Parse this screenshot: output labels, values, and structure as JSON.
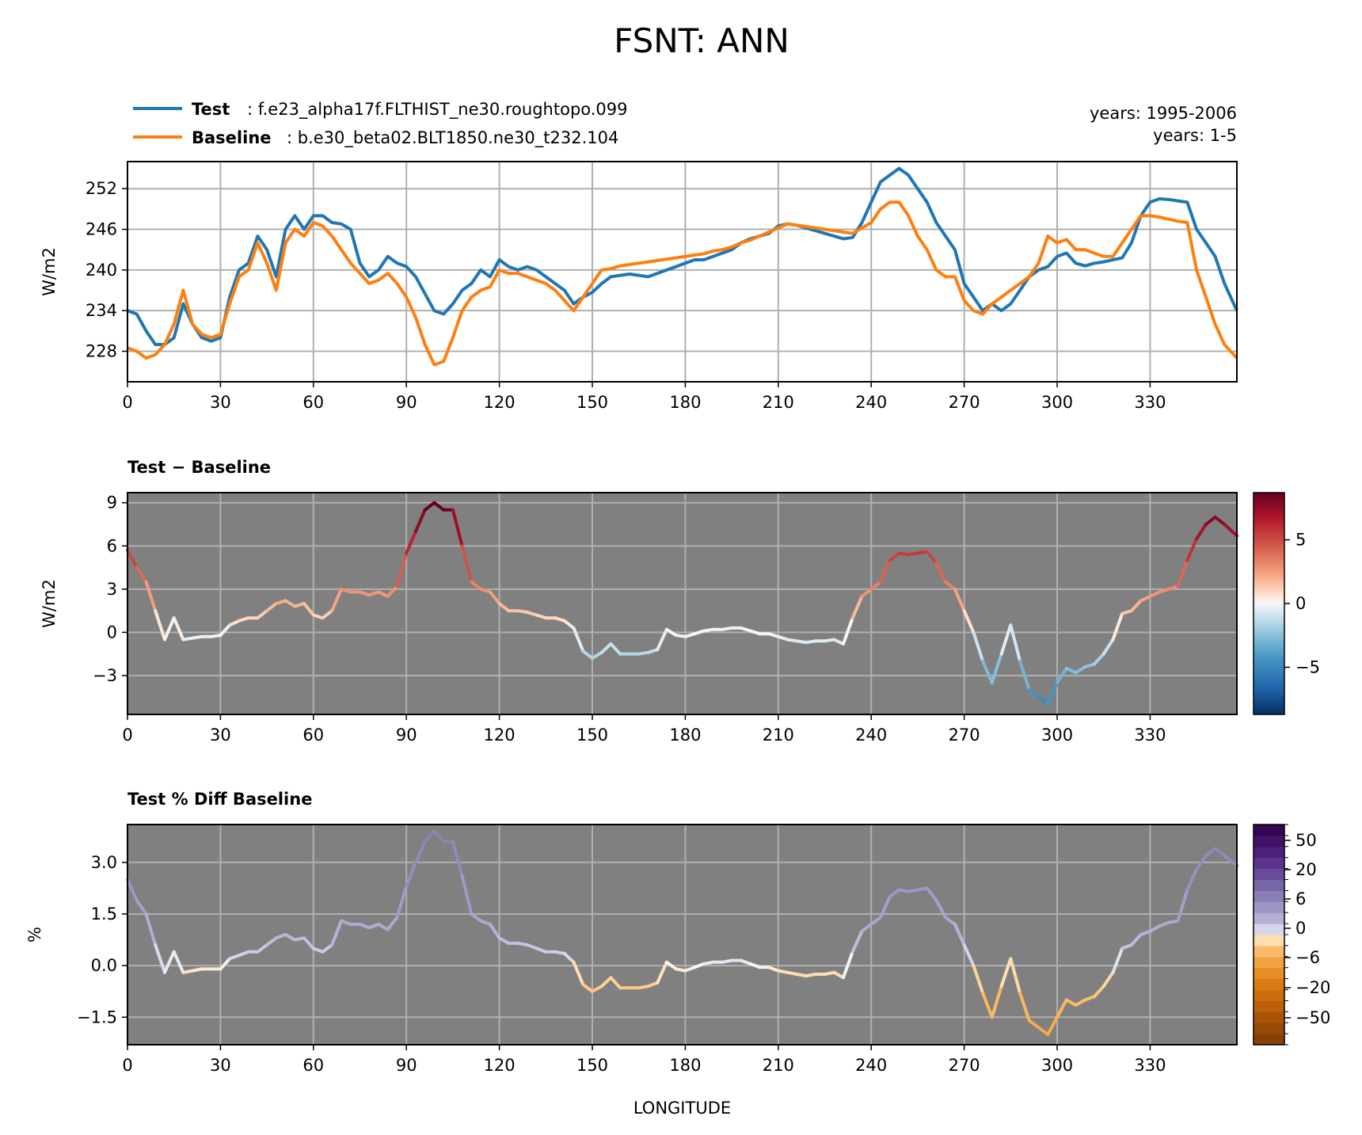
{
  "title": "FSNT: ANN",
  "legend": {
    "test_label": "Test",
    "test_desc": ": f.e23_alpha17f.FLTHIST_ne30.roughtopo.099",
    "base_label": "Baseline",
    "base_desc": ": b.e30_beta02.BLT1850.ne30_t232.104",
    "test_years": "years: 1995-2006",
    "base_years": "years: 1-5"
  },
  "colors": {
    "test": "#1f77b4",
    "baseline": "#ff7f0e",
    "panel_bg": "#808080",
    "grid": "#b0b0b0"
  },
  "chart_data": [
    {
      "type": "line",
      "title": "",
      "xlabel": "",
      "ylabel": "W/m2",
      "xlim": [
        0,
        358
      ],
      "ylim": [
        223.5,
        256
      ],
      "xticks": [
        "0",
        "30",
        "60",
        "90",
        "120",
        "150",
        "180",
        "210",
        "240",
        "270",
        "300",
        "330"
      ],
      "yticks": [
        "228",
        "234",
        "240",
        "246",
        "252"
      ],
      "series": [
        {
          "name": "Test",
          "x": [
            0,
            3,
            6,
            9,
            12,
            15,
            18,
            21,
            24,
            27,
            30,
            33,
            36,
            39,
            42,
            45,
            48,
            51,
            54,
            57,
            60,
            63,
            66,
            69,
            72,
            75,
            78,
            81,
            84,
            87,
            90,
            93,
            96,
            99,
            102,
            105,
            108,
            111,
            114,
            117,
            120,
            123,
            126,
            129,
            132,
            135,
            138,
            141,
            144,
            147,
            150,
            153,
            156,
            159,
            162,
            165,
            168,
            171,
            174,
            177,
            180,
            183,
            186,
            189,
            192,
            195,
            198,
            201,
            204,
            207,
            210,
            213,
            216,
            219,
            222,
            225,
            228,
            231,
            234,
            237,
            240,
            243,
            246,
            249,
            252,
            255,
            258,
            261,
            264,
            267,
            270,
            273,
            276,
            279,
            282,
            285,
            288,
            291,
            294,
            297,
            300,
            303,
            306,
            309,
            312,
            315,
            318,
            321,
            324,
            327,
            330,
            333,
            336,
            339,
            342,
            345,
            348,
            351,
            354,
            358
          ],
          "y": [
            234,
            233.5,
            231,
            229,
            229,
            230,
            235,
            232,
            230,
            229.5,
            230,
            236,
            240,
            241,
            245,
            243,
            239,
            246,
            248,
            246,
            248,
            248,
            247,
            246.8,
            246,
            241,
            239,
            240,
            242,
            241,
            240.5,
            239,
            236.5,
            234,
            233.5,
            235,
            237,
            238,
            240,
            239,
            241.5,
            240.5,
            240,
            240.5,
            240,
            239,
            238,
            237,
            235,
            236,
            236.7,
            238,
            239,
            239.2,
            239.4,
            239.2,
            239,
            239.5,
            240,
            240.5,
            241,
            241.5,
            241.5,
            242,
            242.5,
            243,
            244,
            244.6,
            245,
            245.4,
            246.5,
            246.8,
            246.6,
            246.2,
            245.8,
            245.4,
            245,
            244.6,
            244.8,
            247,
            250,
            253,
            254,
            255,
            254,
            252,
            250,
            247,
            245,
            243,
            238,
            236,
            234,
            235,
            234,
            235,
            237,
            239,
            240,
            240.5,
            242,
            242.5,
            241,
            240.6,
            241,
            241.2,
            241.5,
            241.8,
            244,
            248,
            250,
            250.5,
            250.4,
            250.2,
            250,
            246,
            244,
            242,
            238,
            234
          ]
        },
        {
          "name": "Baseline",
          "x": [
            0,
            3,
            6,
            9,
            12,
            15,
            18,
            21,
            24,
            27,
            30,
            33,
            36,
            39,
            42,
            45,
            48,
            51,
            54,
            57,
            60,
            63,
            66,
            69,
            72,
            75,
            78,
            81,
            84,
            87,
            90,
            93,
            96,
            99,
            102,
            105,
            108,
            111,
            114,
            117,
            120,
            123,
            126,
            129,
            132,
            135,
            138,
            141,
            144,
            147,
            150,
            153,
            156,
            159,
            162,
            165,
            168,
            171,
            174,
            177,
            180,
            183,
            186,
            189,
            192,
            195,
            198,
            201,
            204,
            207,
            210,
            213,
            216,
            219,
            222,
            225,
            228,
            231,
            234,
            237,
            240,
            243,
            246,
            249,
            252,
            255,
            258,
            261,
            264,
            267,
            270,
            273,
            276,
            279,
            282,
            285,
            288,
            291,
            294,
            297,
            300,
            303,
            306,
            309,
            312,
            315,
            318,
            321,
            324,
            327,
            330,
            333,
            336,
            339,
            342,
            345,
            348,
            351,
            354,
            358
          ],
          "y": [
            228.5,
            228,
            227,
            227.5,
            229,
            232,
            237,
            232,
            230.5,
            230,
            230.5,
            235,
            239,
            240,
            244,
            241,
            237,
            244,
            246,
            245,
            247,
            246.5,
            245,
            243,
            241,
            239.5,
            238,
            238.5,
            239.5,
            238,
            236,
            233,
            229,
            226,
            226.5,
            230,
            234,
            236,
            237,
            237.5,
            240,
            239.5,
            239.5,
            239,
            238.5,
            238,
            237,
            235.5,
            234,
            236,
            238,
            240,
            240.2,
            240.6,
            240.8,
            241,
            241.2,
            241.4,
            241.6,
            241.8,
            242,
            242.2,
            242.4,
            242.8,
            243,
            243.4,
            244,
            244.4,
            245,
            245.6,
            246.2,
            246.8,
            246.6,
            246.4,
            246.2,
            246,
            245.8,
            245.6,
            245.4,
            246.2,
            247,
            249,
            250,
            250,
            248,
            245,
            243,
            240,
            239,
            239,
            235.5,
            234,
            233.5,
            235,
            236,
            237,
            238,
            239,
            241,
            245,
            244,
            244.5,
            243,
            243,
            242.5,
            242,
            242,
            244,
            246,
            248,
            248,
            247.8,
            247.5,
            247.2,
            247,
            240,
            236,
            232,
            229,
            227
          ]
        }
      ]
    },
    {
      "type": "line",
      "title": "Test − Baseline",
      "xlabel": "",
      "ylabel": "W/m2",
      "xlim": [
        0,
        358
      ],
      "ylim": [
        -5.7,
        9.7
      ],
      "xticks": [
        "0",
        "30",
        "60",
        "90",
        "120",
        "150",
        "180",
        "210",
        "240",
        "270",
        "300",
        "330"
      ],
      "yticks": [
        "−3",
        "0",
        "3",
        "6",
        "9"
      ],
      "colorbar": {
        "cmap": "RdBu_r",
        "range": [
          -8.7,
          8.7
        ],
        "ticks": [
          "−5",
          "0",
          "5"
        ]
      },
      "series": [
        {
          "name": "Test − Baseline",
          "x": [
            0,
            3,
            6,
            9,
            12,
            15,
            18,
            21,
            24,
            27,
            30,
            33,
            36,
            39,
            42,
            45,
            48,
            51,
            54,
            57,
            60,
            63,
            66,
            69,
            72,
            75,
            78,
            81,
            84,
            87,
            90,
            93,
            96,
            99,
            102,
            105,
            108,
            111,
            114,
            117,
            120,
            123,
            126,
            129,
            132,
            135,
            138,
            141,
            144,
            147,
            150,
            153,
            156,
            159,
            162,
            165,
            168,
            171,
            174,
            177,
            180,
            183,
            186,
            189,
            192,
            195,
            198,
            201,
            204,
            207,
            210,
            213,
            216,
            219,
            222,
            225,
            228,
            231,
            234,
            237,
            240,
            243,
            246,
            249,
            252,
            255,
            258,
            261,
            264,
            267,
            270,
            273,
            276,
            279,
            282,
            285,
            288,
            291,
            294,
            297,
            300,
            303,
            306,
            309,
            312,
            315,
            318,
            321,
            324,
            327,
            330,
            333,
            336,
            339,
            342,
            345,
            348,
            351,
            354,
            358
          ],
          "y": [
            5.7,
            4.5,
            3.5,
            1.5,
            -0.5,
            1,
            -0.5,
            -0.4,
            -0.3,
            -0.3,
            -0.2,
            0.5,
            0.8,
            1,
            1,
            1.5,
            2,
            2.2,
            1.8,
            2,
            1.2,
            1,
            1.5,
            3,
            2.8,
            2.8,
            2.6,
            2.8,
            2.5,
            3.2,
            5.5,
            7,
            8.5,
            9,
            8.5,
            8.5,
            6,
            3.5,
            3,
            2.8,
            2,
            1.5,
            1.5,
            1.4,
            1.2,
            1,
            1,
            0.8,
            0.3,
            -1.3,
            -1.8,
            -1.4,
            -0.8,
            -1.5,
            -1.5,
            -1.5,
            -1.4,
            -1.2,
            0.2,
            -0.2,
            -0.3,
            -0.1,
            0.1,
            0.2,
            0.2,
            0.3,
            0.3,
            0.1,
            -0.1,
            -0.1,
            -0.3,
            -0.5,
            -0.6,
            -0.7,
            -0.6,
            -0.6,
            -0.5,
            -0.8,
            1,
            2.5,
            3,
            3.5,
            5,
            5.5,
            5.4,
            5.5,
            5.6,
            4.8,
            3.5,
            3,
            1.5,
            0,
            -2,
            -3.5,
            -1.5,
            0.5,
            -2,
            -4,
            -4.5,
            -5,
            -3.5,
            -2.5,
            -2.8,
            -2.4,
            -2.2,
            -1.5,
            -0.5,
            1.3,
            1.5,
            2.2,
            2.5,
            2.8,
            3,
            3.2,
            5,
            6.5,
            7.5,
            8,
            7.5,
            6.7
          ]
        }
      ]
    },
    {
      "type": "line",
      "title": "Test % Diff Baseline",
      "xlabel": "LONGITUDE",
      "ylabel": "%",
      "xlim": [
        0,
        358
      ],
      "ylim": [
        -2.3,
        4.1
      ],
      "xticks": [
        "0",
        "30",
        "60",
        "90",
        "120",
        "150",
        "180",
        "210",
        "240",
        "270",
        "300",
        "330"
      ],
      "yticks": [
        "−1.5",
        "0.0",
        "1.5",
        "3.0"
      ],
      "colorbar": {
        "cmap": "PuOr_r",
        "range": [
          -100,
          100
        ],
        "ticks": [
          "−50",
          "−20",
          "−6",
          "0",
          "6",
          "20",
          "50"
        ]
      },
      "series": [
        {
          "name": "Test % Diff Baseline",
          "x": [
            0,
            3,
            6,
            9,
            12,
            15,
            18,
            21,
            24,
            27,
            30,
            33,
            36,
            39,
            42,
            45,
            48,
            51,
            54,
            57,
            60,
            63,
            66,
            69,
            72,
            75,
            78,
            81,
            84,
            87,
            90,
            93,
            96,
            99,
            102,
            105,
            108,
            111,
            114,
            117,
            120,
            123,
            126,
            129,
            132,
            135,
            138,
            141,
            144,
            147,
            150,
            153,
            156,
            159,
            162,
            165,
            168,
            171,
            174,
            177,
            180,
            183,
            186,
            189,
            192,
            195,
            198,
            201,
            204,
            207,
            210,
            213,
            216,
            219,
            222,
            225,
            228,
            231,
            234,
            237,
            240,
            243,
            246,
            249,
            252,
            255,
            258,
            261,
            264,
            267,
            270,
            273,
            276,
            279,
            282,
            285,
            288,
            291,
            294,
            297,
            300,
            303,
            306,
            309,
            312,
            315,
            318,
            321,
            324,
            327,
            330,
            333,
            336,
            339,
            342,
            345,
            348,
            351,
            354,
            358
          ],
          "y": [
            2.5,
            1.9,
            1.5,
            0.6,
            -0.2,
            0.4,
            -0.2,
            -0.15,
            -0.1,
            -0.1,
            -0.1,
            0.2,
            0.3,
            0.4,
            0.4,
            0.6,
            0.8,
            0.9,
            0.75,
            0.8,
            0.5,
            0.4,
            0.6,
            1.3,
            1.2,
            1.2,
            1.1,
            1.2,
            1.05,
            1.4,
            2.3,
            3,
            3.6,
            3.9,
            3.6,
            3.6,
            2.6,
            1.5,
            1.3,
            1.2,
            0.8,
            0.65,
            0.65,
            0.6,
            0.5,
            0.4,
            0.4,
            0.35,
            0.1,
            -0.55,
            -0.75,
            -0.6,
            -0.35,
            -0.65,
            -0.65,
            -0.65,
            -0.6,
            -0.5,
            0.1,
            -0.1,
            -0.15,
            -0.05,
            0.05,
            0.1,
            0.1,
            0.15,
            0.15,
            0.05,
            -0.05,
            -0.05,
            -0.15,
            -0.2,
            -0.25,
            -0.3,
            -0.25,
            -0.25,
            -0.2,
            -0.35,
            0.4,
            1,
            1.2,
            1.4,
            2,
            2.2,
            2.15,
            2.2,
            2.25,
            1.9,
            1.4,
            1.2,
            0.6,
            0,
            -0.8,
            -1.5,
            -0.6,
            0.2,
            -0.8,
            -1.6,
            -1.8,
            -2,
            -1.5,
            -1,
            -1.15,
            -1,
            -0.9,
            -0.6,
            -0.2,
            0.5,
            0.6,
            0.9,
            1,
            1.15,
            1.25,
            1.3,
            2.2,
            2.8,
            3.2,
            3.4,
            3.2,
            2.9
          ]
        }
      ]
    }
  ]
}
